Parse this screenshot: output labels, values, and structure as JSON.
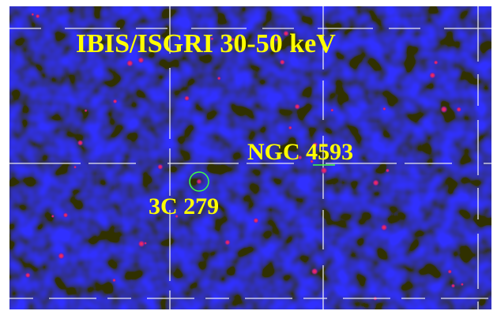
{
  "title": "IBIS/ISGRI 30-50 keV",
  "sources": [
    {
      "label": "NGC 4593"
    },
    {
      "label": "3C 279"
    }
  ]
}
